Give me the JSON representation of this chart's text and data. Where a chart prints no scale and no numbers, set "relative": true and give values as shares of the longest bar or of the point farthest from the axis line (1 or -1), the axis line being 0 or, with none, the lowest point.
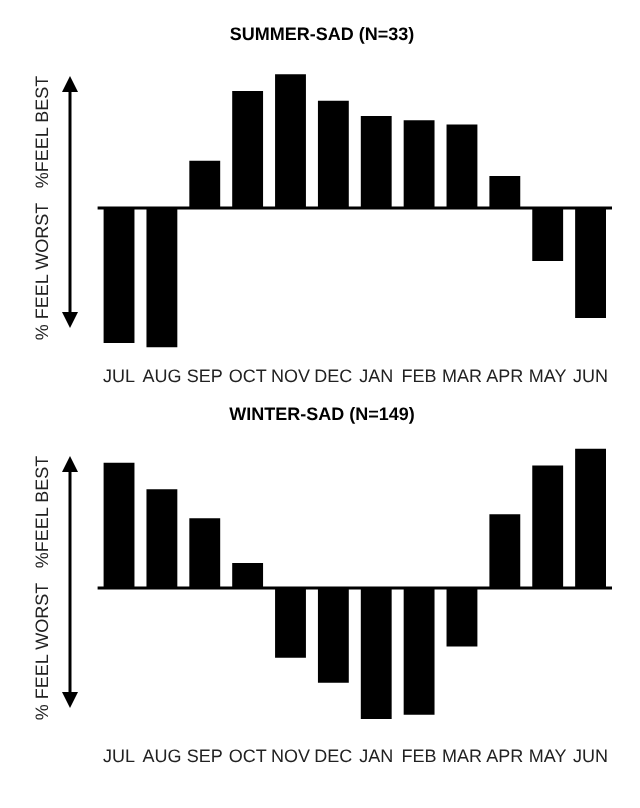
{
  "chart_data": [
    {
      "type": "bar",
      "title": "SUMMER-SAD (N=33)",
      "ylabel": "% FEEL WORST   %FEEL BEST",
      "relative": true,
      "categories": [
        "JUL",
        "AUG",
        "SEP",
        "OCT",
        "NOV",
        "DEC",
        "JAN",
        "FEB",
        "MAR",
        "APR",
        "MAY",
        "JUN"
      ],
      "values": [
        -0.97,
        -1,
        0.34,
        0.84,
        0.96,
        0.77,
        0.66,
        0.63,
        0.6,
        0.23,
        -0.38,
        -0.79
      ],
      "color": "#000000",
      "grid": false,
      "legend": false
    },
    {
      "type": "bar",
      "title": "WINTER-SAD (N=149)",
      "ylabel": "% FEEL WORST   %FEEL BEST",
      "relative": true,
      "categories": [
        "JUL",
        "AUG",
        "SEP",
        "OCT",
        "NOV",
        "DEC",
        "JAN",
        "FEB",
        "MAR",
        "APR",
        "MAY",
        "JUN"
      ],
      "values": [
        0.9,
        0.71,
        0.5,
        0.18,
        -0.5,
        -0.68,
        -0.94,
        -0.91,
        -0.42,
        0.53,
        0.88,
        1
      ],
      "color": "#000000",
      "grid": false,
      "legend": false
    }
  ]
}
